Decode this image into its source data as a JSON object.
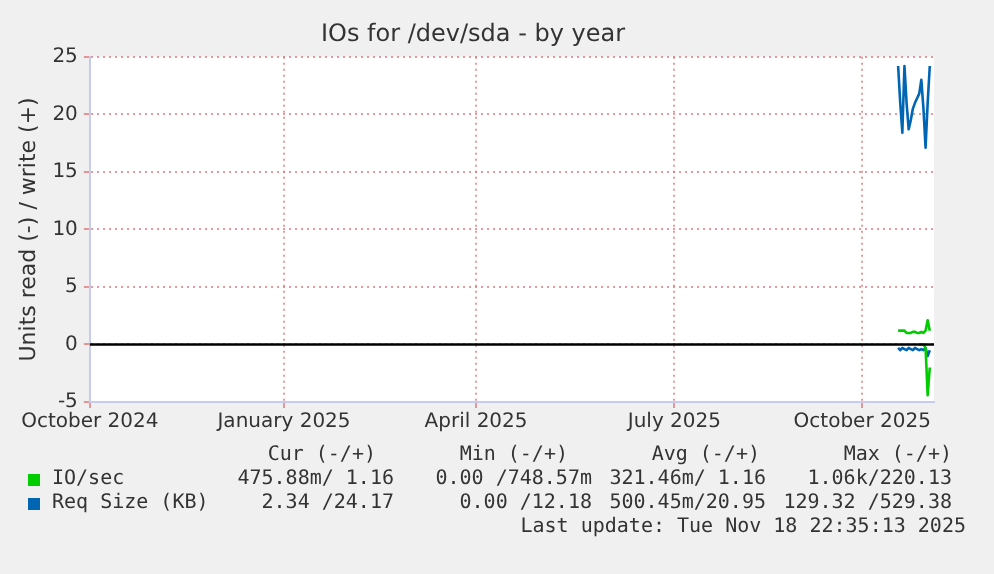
{
  "chart_data": {
    "type": "line",
    "title": "IOs for /dev/sda - by year",
    "ylabel": "Units read (-) / write (+)",
    "xlim": [
      "2024-10-14",
      "2025-11-18"
    ],
    "xticks": [
      {
        "value": "2024-10-14",
        "label": "October 2024"
      },
      {
        "value": "2025-01-14",
        "label": "January 2025"
      },
      {
        "value": "2025-04-15",
        "label": "April 2025"
      },
      {
        "value": "2025-07-18",
        "label": "July 2025"
      },
      {
        "value": "2025-10-15",
        "label": "October 2025"
      }
    ],
    "ylim": [
      -5,
      25
    ],
    "yticks": [
      -5,
      0,
      5,
      10,
      15,
      20,
      25
    ],
    "grid": true,
    "legend": "bottom",
    "x": [
      "2025-11-01",
      "2025-11-02",
      "2025-11-03",
      "2025-11-04",
      "2025-11-05",
      "2025-11-06",
      "2025-11-07",
      "2025-11-08",
      "2025-11-09",
      "2025-11-10",
      "2025-11-11",
      "2025-11-12",
      "2025-11-13",
      "2025-11-14",
      "2025-11-15",
      "2025-11-16"
    ],
    "series": [
      {
        "name": "IO/sec",
        "color": "#00cc00",
        "values": [
          1.2,
          1.2,
          1.2,
          1.2,
          1.0,
          1.0,
          1.0,
          1.1,
          1.1,
          1.0,
          1.0,
          1.1,
          1.0,
          1.2,
          2.1,
          1.2
        ]
      },
      {
        "color": "#00cc00",
        "values": [
          null,
          null,
          null,
          null,
          null,
          null,
          null,
          null,
          null,
          null,
          0,
          0,
          0,
          -0.3,
          -4.4,
          -2.0
        ]
      },
      {
        "name": "Req Size (KB)",
        "color": "#0066b3",
        "values": [
          24.2,
          21,
          18.4,
          24.2,
          21,
          18.7,
          19.5,
          20.5,
          21,
          21.4,
          21.8,
          23,
          20.5,
          17.1,
          21,
          24.2
        ]
      },
      {
        "color": "#0066b3",
        "values": [
          -0.3,
          -0.5,
          -0.3,
          -0.4,
          -0.5,
          -0.3,
          -0.4,
          -0.5,
          -0.3,
          -0.4,
          -0.5,
          -0.4,
          -0.5,
          -0.3,
          -1.0,
          -0.5
        ]
      }
    ],
    "ref_lines": [
      {
        "axis": "y",
        "value": 0,
        "color": "#000000"
      }
    ],
    "annotations": [
      "Cur (-/+)",
      "Min (-/+)",
      "Avg (-/+)",
      "Max (-/+)",
      "475.88m/ 1.16",
      "0.00 /748.57m",
      "321.46m/ 1.16",
      "1.06k/220.13",
      "2.34 /24.17",
      "0.00 /12.18",
      "500.45m/20.95",
      "129.32 /529.38",
      "Last update: Tue Nov 18 22:35:13 2025"
    ]
  }
}
